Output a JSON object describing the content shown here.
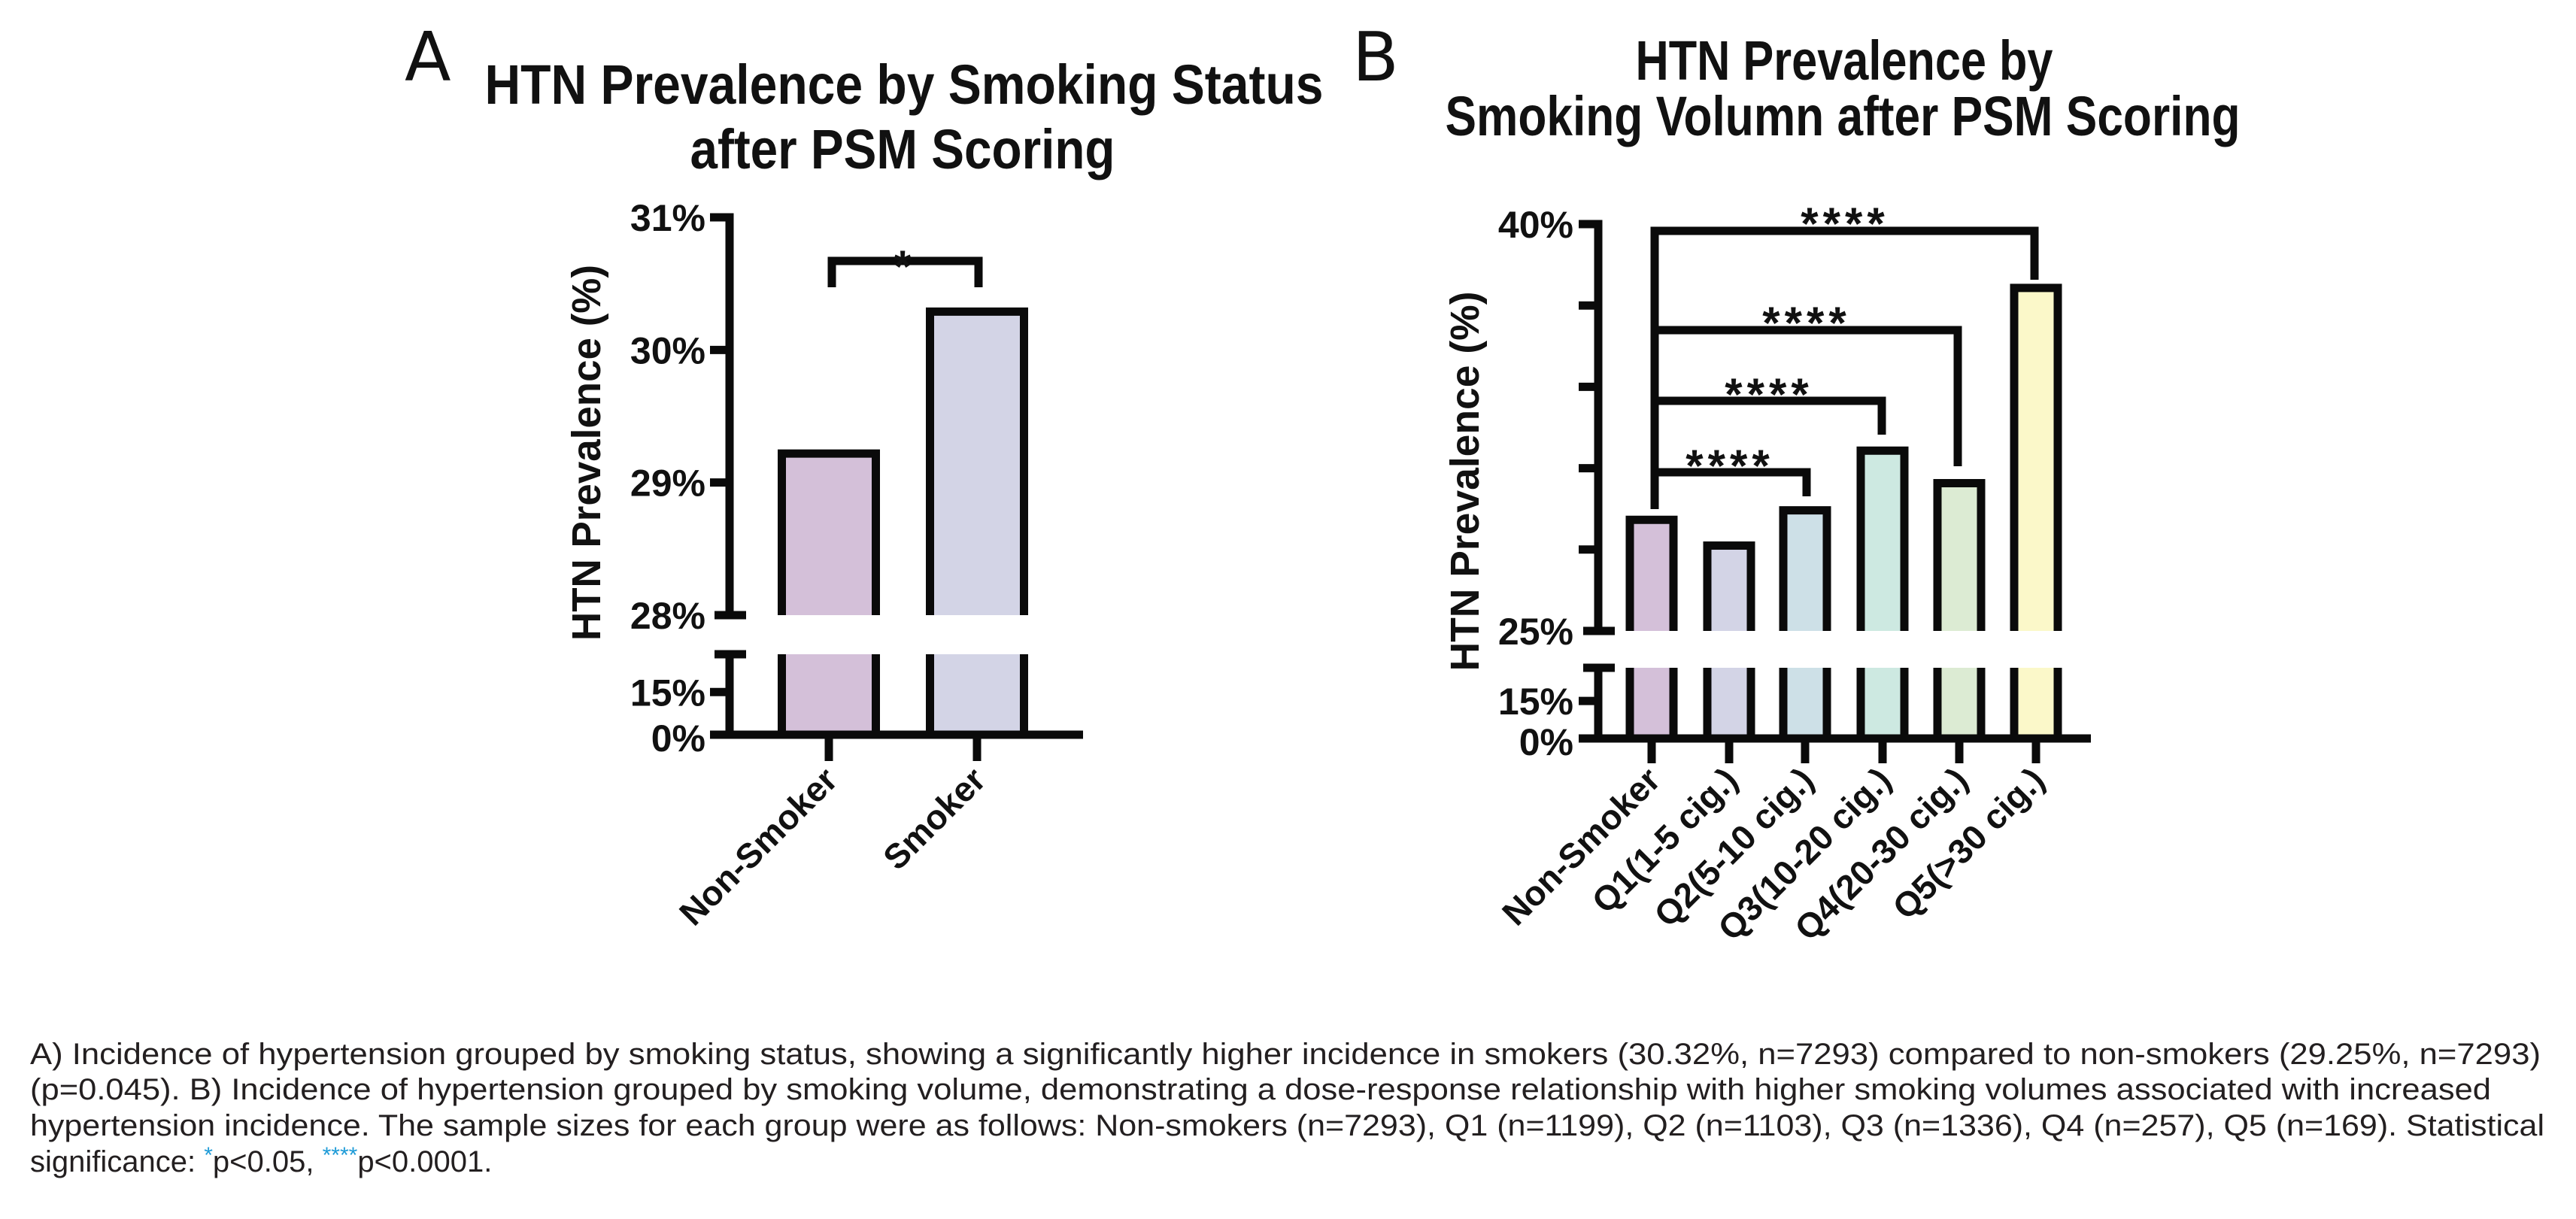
{
  "figure": {
    "caption_lines": [
      "A) Incidence of hypertension grouped by smoking status, showing a significantly higher incidence in smokers (30.32%, n=7293) compared to non-smokers (29.25%, n=7293)",
      "(p=0.045). B) Incidence of hypertension grouped by smoking volume, demonstrating a dose-response relationship with higher smoking volumes associated with increased",
      "hypertension incidence. The sample sizes for each group were as follows: Non-smokers (n=7293), Q1 (n=1199), Q2 (n=1103), Q3 (n=1336), Q4 (n=257), Q5 (n=169). Statistical"
    ],
    "caption_last": {
      "prefix": "significance: ",
      "mark1": "*",
      "text1": "p<0.05, ",
      "mark2": "****",
      "text2": "p<0.0001."
    },
    "significance_mark_color": "#1e9bd7"
  },
  "chart_data": [
    {
      "panel": "A",
      "type": "bar",
      "title_lines": [
        "HTN Prevalence by Smoking Status",
        "after PSM Scoring"
      ],
      "xlabel": "",
      "ylabel": "HTN Prevalence (%)",
      "categories": [
        "Non-Smoker",
        "Smoker"
      ],
      "values": [
        29.25,
        30.32
      ],
      "colors": [
        "#d4c0d9",
        "#d3d4e6"
      ],
      "y_axis": {
        "broken": true,
        "lower_segment": {
          "range": [
            0,
            15
          ],
          "ticks": [
            0,
            15
          ],
          "tick_labels": [
            "0%",
            "15%"
          ]
        },
        "upper_segment": {
          "range": [
            28,
            31
          ],
          "ticks": [
            28,
            29,
            30,
            31
          ],
          "tick_labels": [
            "28%",
            "29%",
            "30%",
            "31%"
          ]
        }
      },
      "comparisons": [
        {
          "from": "Non-Smoker",
          "to": "Smoker",
          "label": "*"
        }
      ],
      "grid": false,
      "legend": "none"
    },
    {
      "panel": "B",
      "type": "bar",
      "title_lines": [
        "HTN Prevalence by",
        "Smoking Volumn after PSM Scoring"
      ],
      "xlabel": "",
      "ylabel": "HTN Prevalence (%)",
      "categories": [
        "Non-Smoker",
        "Q1(1-5 cig.)",
        "Q2(5-10 cig.)",
        "Q3(10-20 cig.)",
        "Q4(20-30 cig.)",
        "Q5(>30 cig.)"
      ],
      "values": [
        29.25,
        28.3,
        29.6,
        31.8,
        30.6,
        37.8
      ],
      "colors": [
        "#d4c0d9",
        "#d3d4e6",
        "#cde0e7",
        "#cde9e1",
        "#dcebd3",
        "#fbf8c9"
      ],
      "y_axis": {
        "broken": true,
        "lower_segment": {
          "range": [
            0,
            15
          ],
          "ticks": [
            0,
            15
          ],
          "tick_labels": [
            "0%",
            "15%"
          ]
        },
        "upper_segment": {
          "range": [
            25,
            40
          ],
          "ticks": [
            25,
            28,
            31,
            34,
            37,
            40
          ],
          "tick_labels": [
            "25%",
            "",
            "",
            "",
            "",
            "40%"
          ]
        }
      },
      "comparisons": [
        {
          "from": "Non-Smoker",
          "to": "Q2(5-10 cig.)",
          "label": "****"
        },
        {
          "from": "Non-Smoker",
          "to": "Q3(10-20 cig.)",
          "label": "****"
        },
        {
          "from": "Non-Smoker",
          "to": "Q4(20-30 cig.)",
          "label": "****"
        },
        {
          "from": "Non-Smoker",
          "to": "Q5(>30 cig.)",
          "label": "****"
        }
      ],
      "grid": false,
      "legend": "none"
    }
  ],
  "panels": {
    "A": {
      "letter": "A"
    },
    "B": {
      "letter": "B"
    }
  }
}
